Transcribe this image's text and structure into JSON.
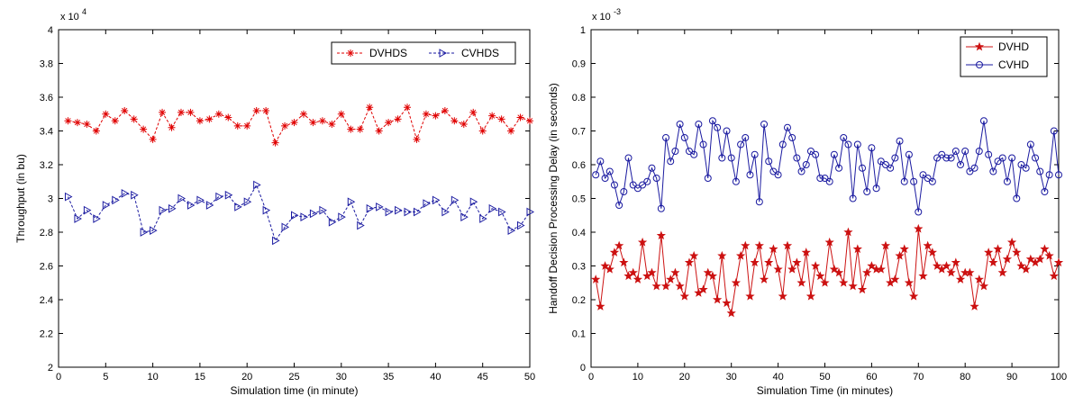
{
  "chart_data": [
    {
      "type": "line",
      "title": "",
      "xlabel": "Simulation time (in minute)",
      "ylabel": "Throughput (in bu)",
      "y_exponent_label": "x 10",
      "y_exponent_power": "4",
      "xlim": [
        0,
        50
      ],
      "ylim": [
        2,
        4
      ],
      "xticks": [
        "0",
        "5",
        "10",
        "15",
        "20",
        "25",
        "30",
        "35",
        "40",
        "45",
        "50"
      ],
      "yticks": [
        "2",
        "2.2",
        "2.4",
        "2.6",
        "2.8",
        "3",
        "3.2",
        "3.4",
        "3.6",
        "3.8",
        "4"
      ],
      "grid": false,
      "legend_position": "top-right",
      "x": [
        1,
        2,
        3,
        4,
        5,
        6,
        7,
        8,
        9,
        10,
        11,
        12,
        13,
        14,
        15,
        16,
        17,
        18,
        19,
        20,
        21,
        22,
        23,
        24,
        25,
        26,
        27,
        28,
        29,
        30,
        31,
        32,
        33,
        34,
        35,
        36,
        37,
        38,
        39,
        40,
        41,
        42,
        43,
        44,
        45,
        46,
        47,
        48,
        49,
        50
      ],
      "series": [
        {
          "name": "DVHDS",
          "color": "#e00000",
          "style": "dashed",
          "marker": "asterisk",
          "values": [
            3.46,
            3.45,
            3.44,
            3.4,
            3.5,
            3.46,
            3.52,
            3.47,
            3.41,
            3.35,
            3.51,
            3.42,
            3.51,
            3.51,
            3.46,
            3.47,
            3.5,
            3.48,
            3.43,
            3.43,
            3.52,
            3.52,
            3.33,
            3.43,
            3.45,
            3.5,
            3.45,
            3.46,
            3.44,
            3.5,
            3.41,
            3.41,
            3.54,
            3.4,
            3.45,
            3.47,
            3.54,
            3.35,
            3.5,
            3.49,
            3.52,
            3.46,
            3.44,
            3.51,
            3.4,
            3.49,
            3.47,
            3.4,
            3.48,
            3.46
          ]
        },
        {
          "name": "CVHDS",
          "color": "#1a1aa0",
          "style": "dashed",
          "marker": "triangle-right",
          "values": [
            3.01,
            2.88,
            2.93,
            2.88,
            2.96,
            2.99,
            3.03,
            3.02,
            2.8,
            2.81,
            2.93,
            2.94,
            3.0,
            2.96,
            2.99,
            2.96,
            3.01,
            3.02,
            2.95,
            2.98,
            3.08,
            2.93,
            2.75,
            2.83,
            2.9,
            2.89,
            2.91,
            2.93,
            2.86,
            2.89,
            2.98,
            2.84,
            2.94,
            2.95,
            2.92,
            2.93,
            2.92,
            2.92,
            2.97,
            2.99,
            2.92,
            2.99,
            2.89,
            2.98,
            2.88,
            2.94,
            2.92,
            2.81,
            2.84,
            2.92
          ]
        }
      ]
    },
    {
      "type": "line",
      "title": "",
      "xlabel": "Simulation Time (in minutes)",
      "ylabel": "Handoff Decision Processing Delay (in seconds)",
      "y_exponent_label": "x 10",
      "y_exponent_power": "-3",
      "xlim": [
        0,
        100
      ],
      "ylim": [
        0,
        1
      ],
      "xticks": [
        "0",
        "10",
        "20",
        "30",
        "40",
        "50",
        "60",
        "70",
        "80",
        "90",
        "100"
      ],
      "yticks": [
        "0",
        "0.1",
        "0.2",
        "0.3",
        "0.4",
        "0.5",
        "0.6",
        "0.7",
        "0.8",
        "0.9",
        "1"
      ],
      "grid": false,
      "legend_position": "top-right",
      "x": [
        1,
        2,
        3,
        4,
        5,
        6,
        7,
        8,
        9,
        10,
        11,
        12,
        13,
        14,
        15,
        16,
        17,
        18,
        19,
        20,
        21,
        22,
        23,
        24,
        25,
        26,
        27,
        28,
        29,
        30,
        31,
        32,
        33,
        34,
        35,
        36,
        37,
        38,
        39,
        40,
        41,
        42,
        43,
        44,
        45,
        46,
        47,
        48,
        49,
        50,
        51,
        52,
        53,
        54,
        55,
        56,
        57,
        58,
        59,
        60,
        61,
        62,
        63,
        64,
        65,
        66,
        67,
        68,
        69,
        70,
        71,
        72,
        73,
        74,
        75,
        76,
        77,
        78,
        79,
        80,
        81,
        82,
        83,
        84,
        85,
        86,
        87,
        88,
        89,
        90,
        91,
        92,
        93,
        94,
        95,
        96,
        97,
        98,
        99,
        100
      ],
      "series": [
        {
          "name": "DVHD",
          "color": "#cc1111",
          "style": "solid",
          "marker": "star",
          "values": [
            0.26,
            0.18,
            0.3,
            0.29,
            0.34,
            0.36,
            0.31,
            0.27,
            0.28,
            0.26,
            0.37,
            0.27,
            0.28,
            0.24,
            0.39,
            0.24,
            0.26,
            0.28,
            0.24,
            0.21,
            0.31,
            0.33,
            0.22,
            0.23,
            0.28,
            0.27,
            0.2,
            0.33,
            0.19,
            0.16,
            0.25,
            0.33,
            0.36,
            0.21,
            0.31,
            0.36,
            0.26,
            0.31,
            0.35,
            0.29,
            0.21,
            0.36,
            0.29,
            0.31,
            0.25,
            0.34,
            0.21,
            0.3,
            0.27,
            0.25,
            0.37,
            0.29,
            0.28,
            0.25,
            0.4,
            0.24,
            0.35,
            0.23,
            0.28,
            0.3,
            0.29,
            0.29,
            0.36,
            0.25,
            0.26,
            0.33,
            0.35,
            0.25,
            0.21,
            0.41,
            0.27,
            0.36,
            0.34,
            0.3,
            0.29,
            0.3,
            0.28,
            0.31,
            0.26,
            0.28,
            0.28,
            0.18,
            0.26,
            0.24,
            0.34,
            0.31,
            0.35,
            0.28,
            0.32,
            0.37,
            0.34,
            0.3,
            0.29,
            0.32,
            0.31,
            0.32,
            0.35,
            0.33,
            0.27,
            0.31
          ]
        },
        {
          "name": "CVHD",
          "color": "#1a1aa0",
          "style": "solid",
          "marker": "circle",
          "values": [
            0.57,
            0.61,
            0.56,
            0.58,
            0.54,
            0.48,
            0.52,
            0.62,
            0.54,
            0.53,
            0.54,
            0.55,
            0.59,
            0.56,
            0.47,
            0.68,
            0.61,
            0.64,
            0.72,
            0.68,
            0.64,
            0.63,
            0.72,
            0.66,
            0.56,
            0.73,
            0.71,
            0.62,
            0.7,
            0.62,
            0.55,
            0.66,
            0.68,
            0.57,
            0.63,
            0.49,
            0.72,
            0.61,
            0.58,
            0.57,
            0.66,
            0.71,
            0.68,
            0.62,
            0.58,
            0.6,
            0.64,
            0.63,
            0.56,
            0.56,
            0.55,
            0.63,
            0.59,
            0.68,
            0.66,
            0.5,
            0.66,
            0.59,
            0.52,
            0.65,
            0.53,
            0.61,
            0.6,
            0.59,
            0.62,
            0.67,
            0.55,
            0.63,
            0.55,
            0.46,
            0.57,
            0.56,
            0.55,
            0.62,
            0.63,
            0.62,
            0.62,
            0.64,
            0.6,
            0.64,
            0.58,
            0.59,
            0.64,
            0.73,
            0.63,
            0.58,
            0.61,
            0.62,
            0.55,
            0.62,
            0.5,
            0.6,
            0.59,
            0.66,
            0.62,
            0.58,
            0.52,
            0.57,
            0.7,
            0.57
          ]
        }
      ]
    }
  ]
}
